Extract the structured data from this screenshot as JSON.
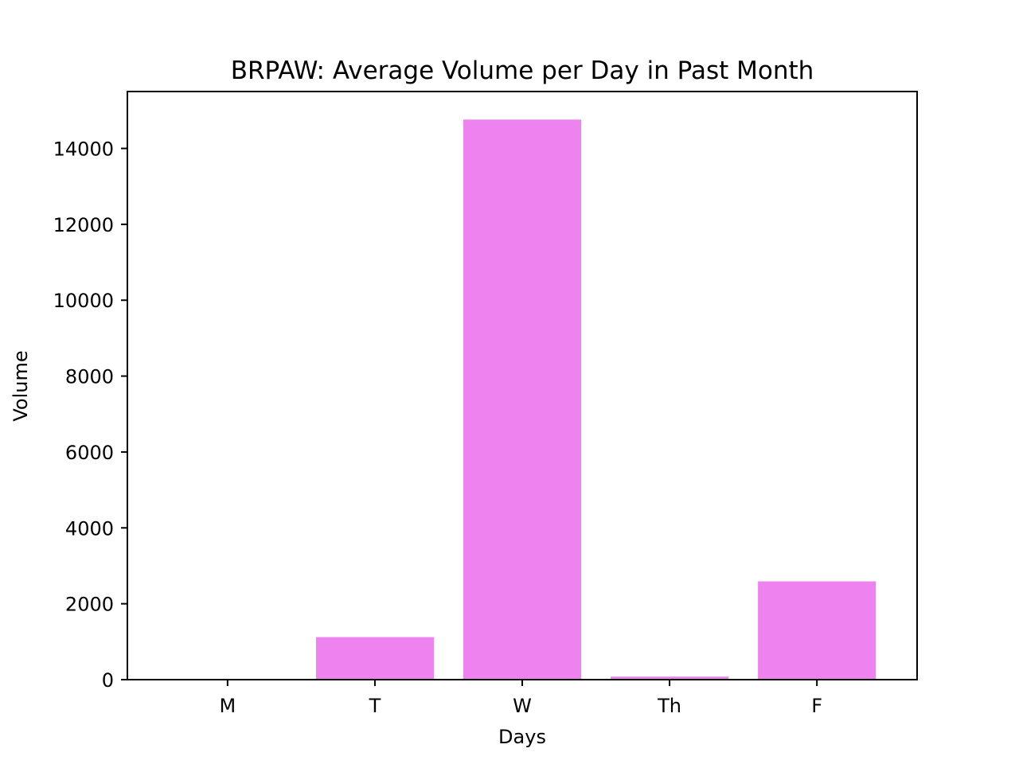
{
  "chart_data": {
    "type": "bar",
    "title": "BRPAW: Average Volume per Day in Past Month",
    "xlabel": "Days",
    "ylabel": "Volume",
    "categories": [
      "M",
      "T",
      "W",
      "Th",
      "F"
    ],
    "values": [
      0,
      1120,
      14760,
      80,
      2590
    ],
    "ylim": [
      0,
      15500
    ],
    "yticks": [
      0,
      2000,
      4000,
      6000,
      8000,
      10000,
      12000,
      14000
    ],
    "ytick_labels": [
      "0",
      "2000",
      "4000",
      "6000",
      "8000",
      "10000",
      "12000",
      "14000"
    ],
    "grid": false,
    "legend": "none",
    "bar_color": "#ee82ee"
  }
}
